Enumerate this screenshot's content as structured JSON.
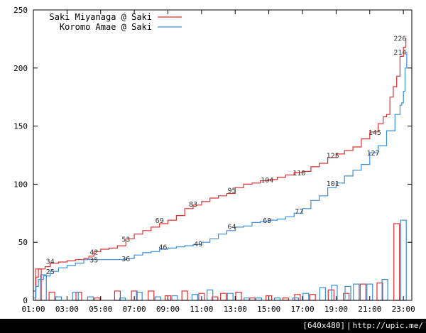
{
  "footer": {
    "resolution": "[640x480]",
    "url": "http://upic.me/"
  },
  "chart_data": {
    "type": "line",
    "title": "",
    "xlabel": "",
    "ylabel": "",
    "ylim": [
      0,
      250
    ],
    "y_ticks": [
      0,
      50,
      100,
      150,
      200,
      250
    ],
    "xlim_hours": [
      1,
      23.5
    ],
    "x_tick_labels": [
      "01:00",
      "03:00",
      "05:00",
      "07:00",
      "09:00",
      "11:00",
      "13:00",
      "15:00",
      "17:00",
      "19:00",
      "21:00",
      "23:00"
    ],
    "grid": false,
    "legend": "top-left",
    "series": [
      {
        "name": "Saki Miyanaga @ Saki",
        "color": "#e03030",
        "cumulative": [
          [
            1.0,
            8
          ],
          [
            1.15,
            20
          ],
          [
            1.3,
            27
          ],
          [
            1.7,
            29
          ],
          [
            2.0,
            32
          ],
          [
            2.5,
            33
          ],
          [
            3.0,
            34
          ],
          [
            3.5,
            35
          ],
          [
            4.0,
            36
          ],
          [
            4.3,
            38
          ],
          [
            4.6,
            42
          ],
          [
            5.0,
            44
          ],
          [
            5.5,
            45
          ],
          [
            6.0,
            47
          ],
          [
            6.5,
            53
          ],
          [
            7.0,
            57
          ],
          [
            7.5,
            60
          ],
          [
            8.0,
            63
          ],
          [
            8.5,
            66
          ],
          [
            9.0,
            69
          ],
          [
            9.5,
            73
          ],
          [
            10.0,
            79
          ],
          [
            10.5,
            82
          ],
          [
            11.0,
            85
          ],
          [
            11.5,
            88
          ],
          [
            12.0,
            90
          ],
          [
            12.5,
            92
          ],
          [
            13.0,
            97
          ],
          [
            13.5,
            100
          ],
          [
            14.0,
            101
          ],
          [
            14.5,
            103
          ],
          [
            15.0,
            104
          ],
          [
            15.5,
            106
          ],
          [
            16.0,
            108
          ],
          [
            16.5,
            110
          ],
          [
            17.0,
            111
          ],
          [
            17.5,
            115
          ],
          [
            18.0,
            118
          ],
          [
            18.5,
            123
          ],
          [
            19.0,
            126
          ],
          [
            19.5,
            129
          ],
          [
            20.0,
            132
          ],
          [
            20.5,
            139
          ],
          [
            21.0,
            145
          ],
          [
            21.5,
            152
          ],
          [
            21.8,
            158
          ],
          [
            22.0,
            160
          ],
          [
            22.2,
            175
          ],
          [
            22.4,
            184
          ],
          [
            22.6,
            193
          ],
          [
            22.8,
            210
          ],
          [
            23.0,
            218
          ],
          [
            23.15,
            226
          ]
        ],
        "labels": [
          {
            "x": 2.0,
            "y": 34,
            "text": "34"
          },
          {
            "x": 4.6,
            "y": 42,
            "text": "42"
          },
          {
            "x": 6.5,
            "y": 53,
            "text": "53"
          },
          {
            "x": 8.5,
            "y": 69,
            "text": "69"
          },
          {
            "x": 10.5,
            "y": 83,
            "text": "83"
          },
          {
            "x": 12.8,
            "y": 95,
            "text": "95"
          },
          {
            "x": 14.9,
            "y": 104,
            "text": "104"
          },
          {
            "x": 16.8,
            "y": 110,
            "text": "110"
          },
          {
            "x": 18.8,
            "y": 125,
            "text": "125"
          },
          {
            "x": 21.3,
            "y": 145,
            "text": "145"
          },
          {
            "x": 22.8,
            "y": 226,
            "text": "226"
          }
        ],
        "bars": [
          {
            "x": 1.3,
            "value": 27
          },
          {
            "x": 2.1,
            "value": 7
          },
          {
            "x": 3.7,
            "value": 7
          },
          {
            "x": 4.8,
            "value": 2
          },
          {
            "x": 6.0,
            "value": 8
          },
          {
            "x": 7.0,
            "value": 8
          },
          {
            "x": 8.0,
            "value": 8
          },
          {
            "x": 9.0,
            "value": 4
          },
          {
            "x": 10.0,
            "value": 8
          },
          {
            "x": 11.0,
            "value": 6
          },
          {
            "x": 11.8,
            "value": 3
          },
          {
            "x": 12.3,
            "value": 6
          },
          {
            "x": 13.2,
            "value": 7
          },
          {
            "x": 14.0,
            "value": 2
          },
          {
            "x": 15.0,
            "value": 4
          },
          {
            "x": 16.0,
            "value": 2
          },
          {
            "x": 16.7,
            "value": 5
          },
          {
            "x": 17.6,
            "value": 5
          },
          {
            "x": 18.7,
            "value": 9
          },
          {
            "x": 19.6,
            "value": 6
          },
          {
            "x": 20.6,
            "value": 14
          },
          {
            "x": 21.6,
            "value": 15
          },
          {
            "x": 22.6,
            "value": 66
          }
        ]
      },
      {
        "name": "Koromo Amae @ Saki",
        "color": "#3a8ee0",
        "cumulative": [
          [
            1.0,
            2
          ],
          [
            1.15,
            12
          ],
          [
            1.3,
            18
          ],
          [
            1.6,
            21
          ],
          [
            2.0,
            25
          ],
          [
            2.5,
            28
          ],
          [
            3.0,
            30
          ],
          [
            3.5,
            32
          ],
          [
            4.0,
            35
          ],
          [
            5.0,
            35
          ],
          [
            6.0,
            35
          ],
          [
            6.5,
            36
          ],
          [
            7.0,
            39
          ],
          [
            7.5,
            41
          ],
          [
            8.0,
            42
          ],
          [
            8.5,
            44
          ],
          [
            9.0,
            45
          ],
          [
            9.5,
            46
          ],
          [
            10.0,
            47
          ],
          [
            10.5,
            48
          ],
          [
            11.0,
            50
          ],
          [
            11.5,
            53
          ],
          [
            12.0,
            57
          ],
          [
            12.5,
            60
          ],
          [
            13.0,
            63
          ],
          [
            13.5,
            64
          ],
          [
            14.0,
            67
          ],
          [
            14.5,
            68
          ],
          [
            15.0,
            69
          ],
          [
            15.5,
            70
          ],
          [
            16.0,
            72
          ],
          [
            16.5,
            75
          ],
          [
            17.0,
            79
          ],
          [
            17.5,
            86
          ],
          [
            18.0,
            90
          ],
          [
            18.5,
            97
          ],
          [
            19.0,
            101
          ],
          [
            19.5,
            107
          ],
          [
            20.0,
            112
          ],
          [
            20.5,
            117
          ],
          [
            21.0,
            127
          ],
          [
            21.5,
            133
          ],
          [
            22.0,
            146
          ],
          [
            22.5,
            160
          ],
          [
            22.8,
            168
          ],
          [
            22.9,
            170
          ],
          [
            23.0,
            180
          ],
          [
            23.1,
            200
          ],
          [
            23.2,
            214
          ]
        ],
        "labels": [
          {
            "x": 2.0,
            "y": 25,
            "text": "25"
          },
          {
            "x": 4.6,
            "y": 35,
            "text": "35"
          },
          {
            "x": 6.5,
            "y": 36,
            "text": "36"
          },
          {
            "x": 8.7,
            "y": 46,
            "text": "46"
          },
          {
            "x": 10.8,
            "y": 49,
            "text": "49"
          },
          {
            "x": 12.8,
            "y": 64,
            "text": "64"
          },
          {
            "x": 14.9,
            "y": 69,
            "text": "69"
          },
          {
            "x": 16.8,
            "y": 77,
            "text": "77"
          },
          {
            "x": 18.8,
            "y": 101,
            "text": "101"
          },
          {
            "x": 21.2,
            "y": 127,
            "text": "127"
          },
          {
            "x": 22.8,
            "y": 214,
            "text": "214"
          }
        ],
        "bars": [
          {
            "x": 1.6,
            "value": 22
          },
          {
            "x": 2.5,
            "value": 3
          },
          {
            "x": 3.5,
            "value": 7
          },
          {
            "x": 4.4,
            "value": 3
          },
          {
            "x": 6.3,
            "value": 2
          },
          {
            "x": 7.3,
            "value": 7
          },
          {
            "x": 8.4,
            "value": 3
          },
          {
            "x": 9.4,
            "value": 4
          },
          {
            "x": 10.6,
            "value": 5
          },
          {
            "x": 11.5,
            "value": 9
          },
          {
            "x": 12.7,
            "value": 6
          },
          {
            "x": 13.7,
            "value": 2
          },
          {
            "x": 14.4,
            "value": 2
          },
          {
            "x": 15.5,
            "value": 2
          },
          {
            "x": 16.6,
            "value": 2
          },
          {
            "x": 17.2,
            "value": 6
          },
          {
            "x": 18.2,
            "value": 11
          },
          {
            "x": 18.9,
            "value": 13
          },
          {
            "x": 19.7,
            "value": 12
          },
          {
            "x": 20.2,
            "value": 14
          },
          {
            "x": 21.0,
            "value": 14
          },
          {
            "x": 21.9,
            "value": 18
          },
          {
            "x": 23.0,
            "value": 69
          }
        ]
      }
    ]
  }
}
